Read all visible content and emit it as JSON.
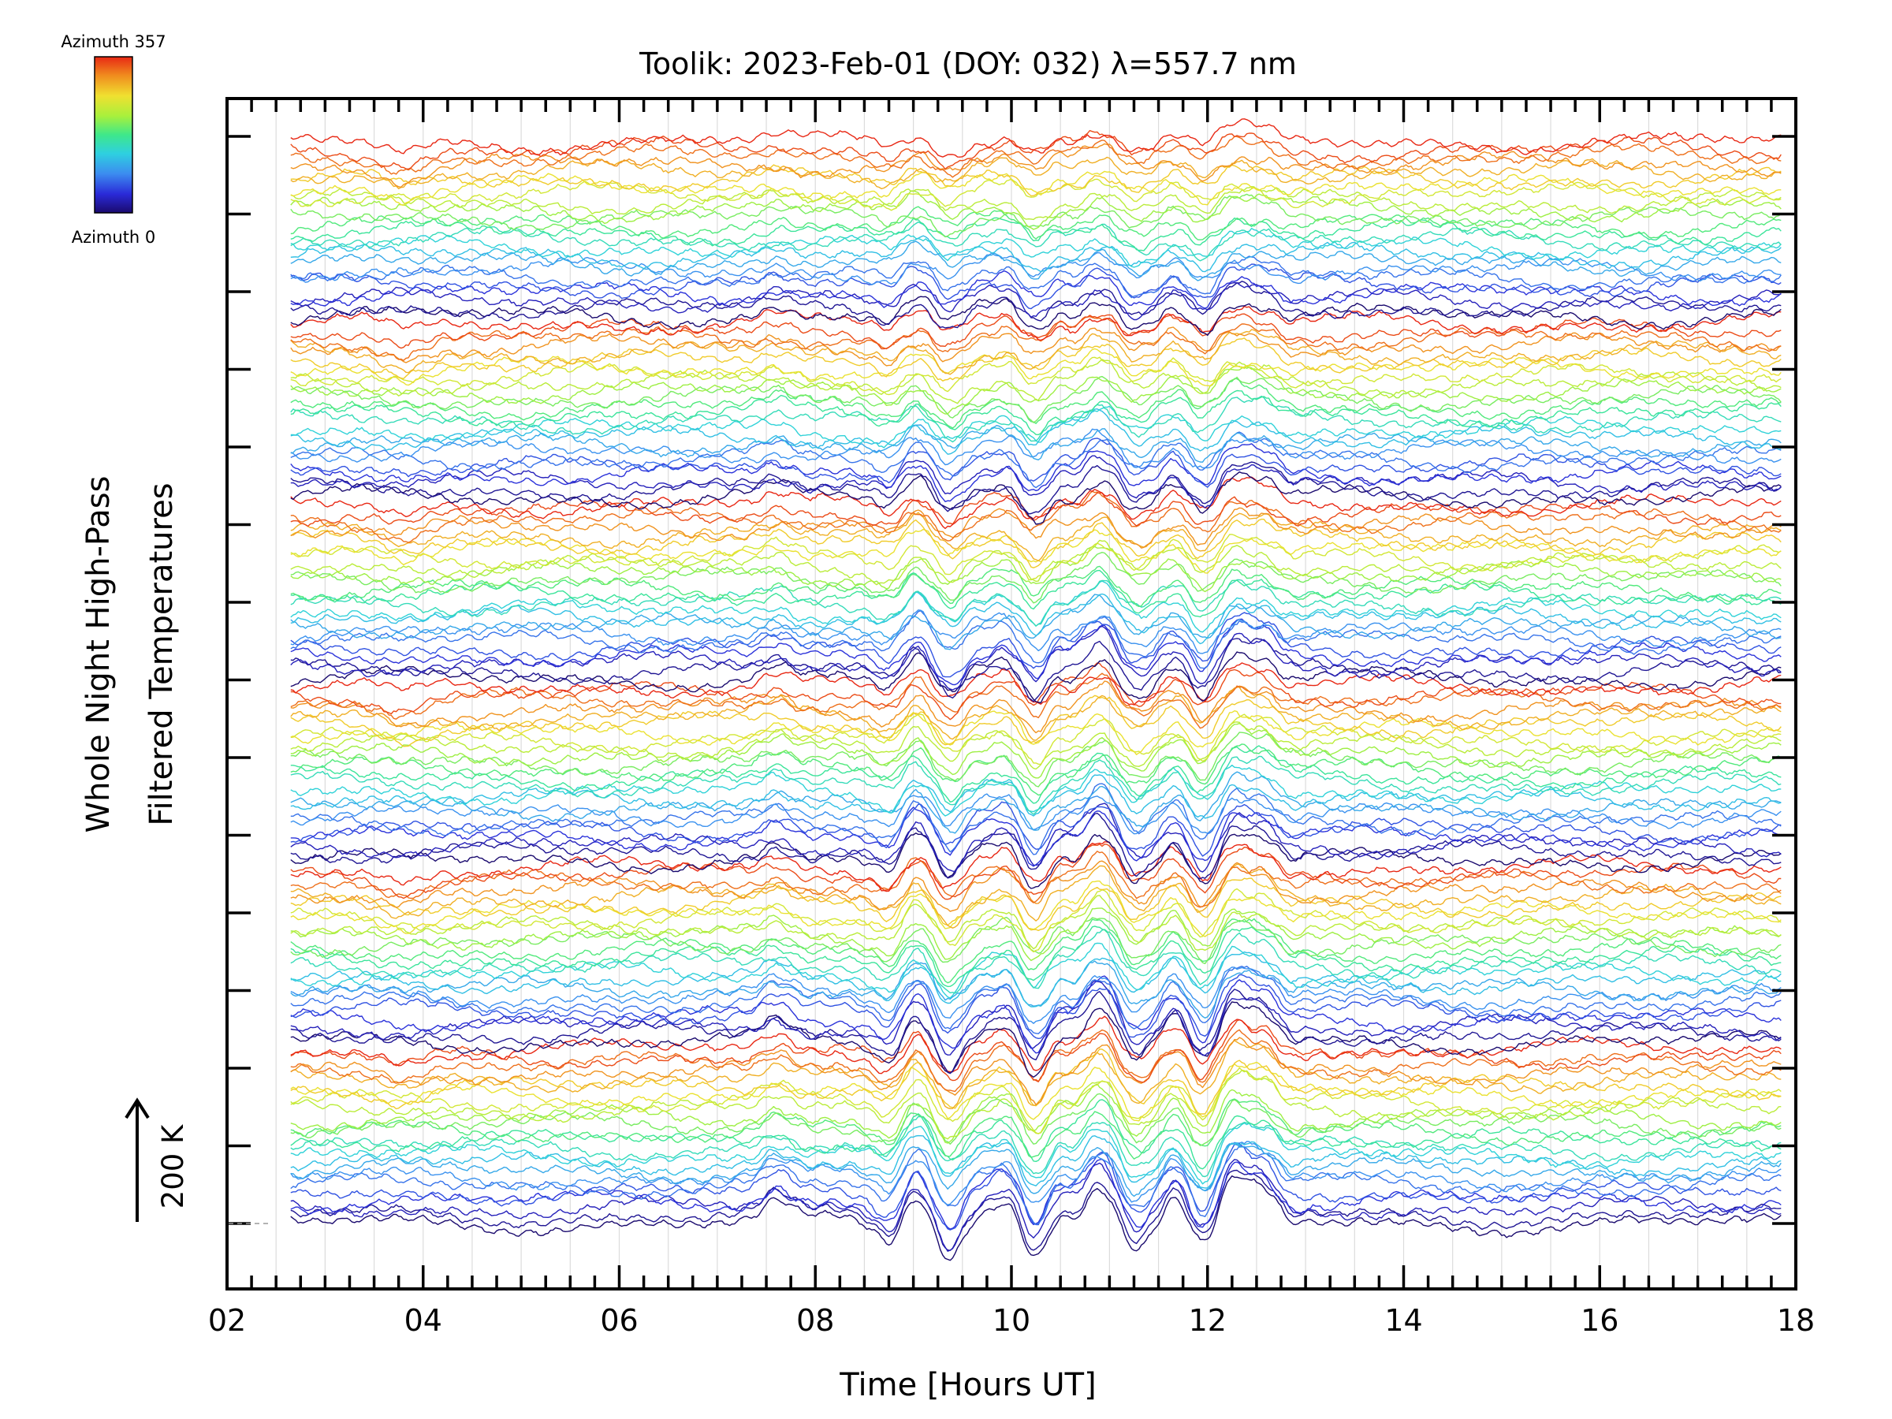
{
  "chart_data": {
    "type": "line",
    "title": "Toolik: 2023-Feb-01 (DOY: 032) λ=557.7 nm",
    "xlabel": "Time [Hours UT]",
    "ylabel_line1": "Whole Night High-Pass",
    "ylabel_line2": "Filtered Temperatures",
    "xlim": [
      2,
      18
    ],
    "x_ticks": [
      "02",
      "04",
      "06",
      "08",
      "10",
      "12",
      "14",
      "16",
      "18"
    ],
    "x_data_range": [
      2.65,
      17.85
    ],
    "y_scale_label": "200 K",
    "colorbar": {
      "label_top": "Azimuth 357",
      "label_bottom": "Azimuth 0",
      "colors": [
        "#1a0a6e",
        "#2a2ad8",
        "#3c8cf0",
        "#2ed0e0",
        "#3ee88a",
        "#a8f03c",
        "#f0e030",
        "#f08c1e",
        "#e82814"
      ]
    },
    "series_count": 144,
    "series_period": 24,
    "grid": true,
    "legend": "colorbar top-left"
  }
}
